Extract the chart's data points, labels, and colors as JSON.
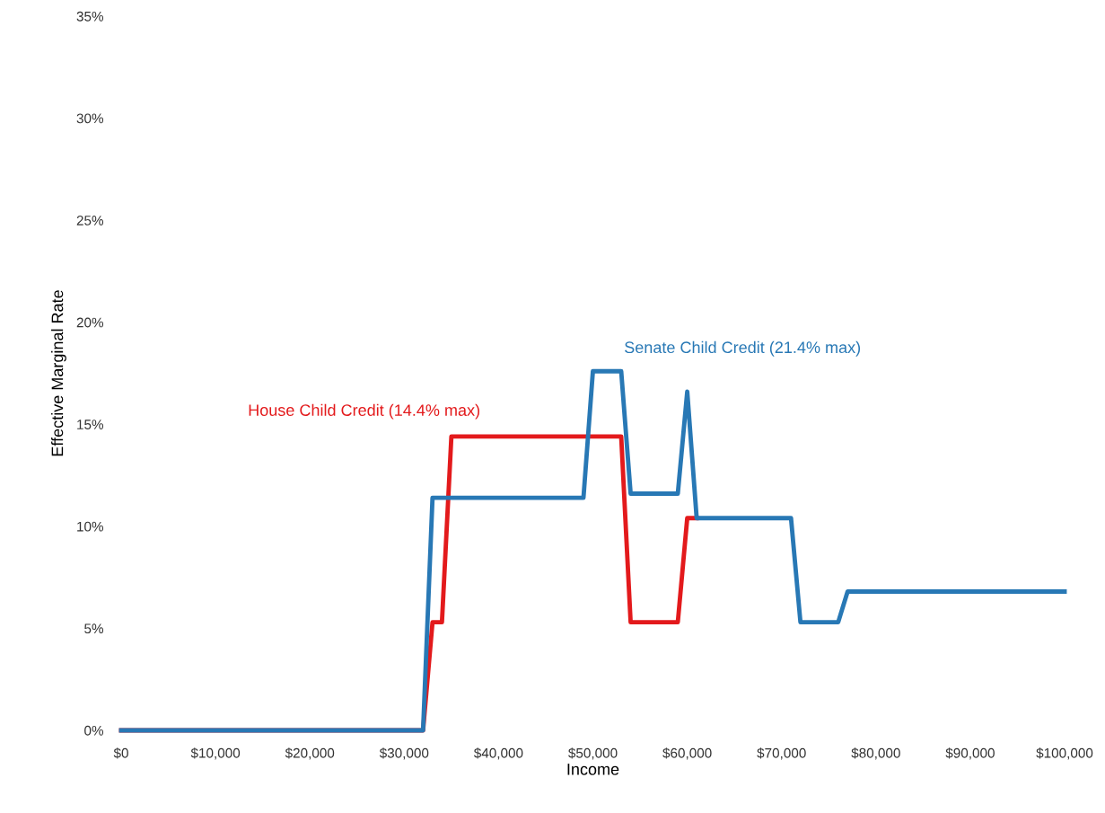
{
  "chart_data": {
    "type": "line",
    "xlabel": "Income",
    "ylabel": "Effective Marginal Rate",
    "xlim": [
      0,
      100000
    ],
    "ylim": [
      0,
      35
    ],
    "xticks": [
      {
        "value": 0,
        "label": "$0"
      },
      {
        "value": 10000,
        "label": "$10,000"
      },
      {
        "value": 20000,
        "label": "$20,000"
      },
      {
        "value": 30000,
        "label": "$30,000"
      },
      {
        "value": 40000,
        "label": "$40,000"
      },
      {
        "value": 50000,
        "label": "$50,000"
      },
      {
        "value": 60000,
        "label": "$60,000"
      },
      {
        "value": 70000,
        "label": "$70,000"
      },
      {
        "value": 80000,
        "label": "$80,000"
      },
      {
        "value": 90000,
        "label": "$90,000"
      },
      {
        "value": 100000,
        "label": "$100,000"
      }
    ],
    "yticks": [
      {
        "value": 0,
        "label": "0%"
      },
      {
        "value": 5,
        "label": "5%"
      },
      {
        "value": 10,
        "label": "10%"
      },
      {
        "value": 15,
        "label": "15%"
      },
      {
        "value": 20,
        "label": "20%"
      },
      {
        "value": 25,
        "label": "25%"
      },
      {
        "value": 30,
        "label": "30%"
      },
      {
        "value": 35,
        "label": "35%"
      }
    ],
    "grid": false,
    "marker": "none",
    "line_style": "solid",
    "series": [
      {
        "name": "House Child Credit (14.4% max)",
        "color": "#e31a1c",
        "x": [
          0,
          32000,
          33000,
          34000,
          35000,
          53000,
          54000,
          59000,
          60000,
          61000
        ],
        "values": [
          0,
          0,
          5.3,
          5.3,
          14.4,
          14.4,
          5.3,
          5.3,
          10.4,
          10.4
        ]
      },
      {
        "name": "Senate Child Credit (21.4% max)",
        "color": "#2878b5",
        "x": [
          0,
          32000,
          33000,
          49000,
          50000,
          53000,
          54000,
          59000,
          60000,
          61000,
          71000,
          72000,
          76000,
          77000,
          100000
        ],
        "values": [
          0,
          0,
          11.4,
          11.4,
          17.6,
          17.6,
          11.6,
          11.6,
          16.6,
          10.4,
          10.4,
          5.3,
          5.3,
          6.8,
          6.8
        ]
      }
    ]
  }
}
